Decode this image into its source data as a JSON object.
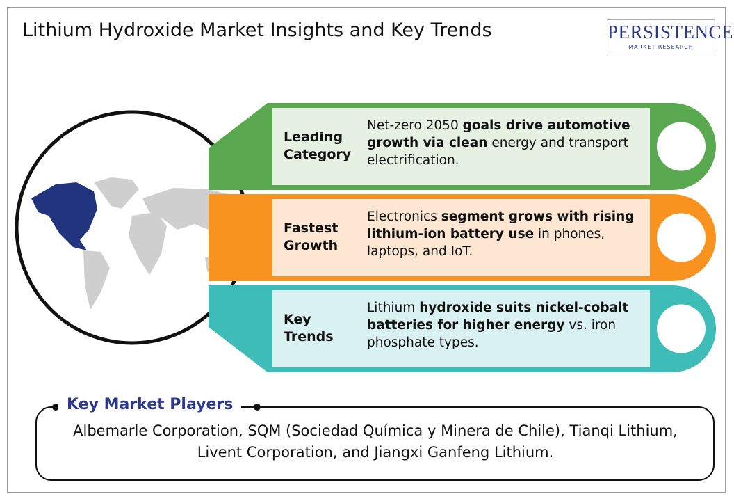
{
  "header": {
    "title": "Lithium Hydroxide Market Insights and Key Trends",
    "logo": {
      "name": "PERSISTENCE",
      "tagline": "MARKET RESEARCH"
    }
  },
  "insights": [
    {
      "label": "Leading Category",
      "color": "#5aa84f",
      "fill": "#e6f1e3",
      "text": [
        {
          "text": "Net-zero 2050 ",
          "bold": false
        },
        {
          "text": "goals drive automotive growth via clean",
          "bold": true
        },
        {
          "text": " energy and transport electrification.",
          "bold": false
        }
      ]
    },
    {
      "label": "Fastest Growth",
      "color": "#f7931e",
      "fill": "#fde7d3",
      "text": [
        {
          "text": "Electronics ",
          "bold": false
        },
        {
          "text": "segment grows with rising lithium-ion battery use",
          "bold": true
        },
        {
          "text": " in phones, laptops, and IoT.",
          "bold": false
        }
      ]
    },
    {
      "label": "Key Trends",
      "color": "#3dbcb8",
      "fill": "#daf1f1",
      "text": [
        {
          "text": "Lithium ",
          "bold": false
        },
        {
          "text": "hydroxide suits nickel-cobalt batteries for higher energy",
          "bold": true
        },
        {
          "text": " vs. iron phosphate types.",
          "bold": false
        }
      ]
    }
  ],
  "players": {
    "title": "Key Market Players",
    "text": "Albemarle Corporation, SQM (Sociedad Química y Minera de Chile), Tianqi Lithium, Livent Corporation, and Jiangxi Ganfeng Lithium."
  }
}
